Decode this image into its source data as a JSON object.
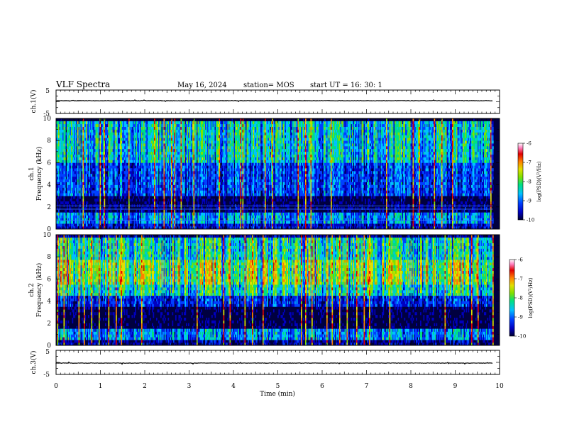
{
  "header": {
    "title": "VLF Spectra",
    "date": "May 16, 2024",
    "station": "station= MOS",
    "start": "start  UT  =   16: 30: 1"
  },
  "chart_data": {
    "type": "heatmap",
    "xlabel": "Time  (min)",
    "xlim": [
      0,
      10
    ],
    "xticks": [
      "0",
      "1",
      "2",
      "3",
      "4",
      "5",
      "6",
      "7",
      "8",
      "9",
      "10"
    ],
    "colors": {
      "background": "#000040",
      "colormap": [
        "#000030",
        "#0000c0",
        "#0040ff",
        "#00c0ff",
        "#00e080",
        "#80e000",
        "#e0e000",
        "#ff8000",
        "#e00000",
        "#ff80c0",
        "#ffffff"
      ]
    },
    "panels": [
      {
        "id": "ch1-waveform",
        "type": "line",
        "ylabel": "ch.1(V)",
        "ylim": [
          -5,
          5
        ],
        "yticks": [
          "5",
          "-5"
        ]
      },
      {
        "id": "ch1-spectrogram",
        "type": "heatmap",
        "ylabel": "ch.1\nFrequency  (kHz)",
        "ylim": [
          0,
          10
        ],
        "yticks": [
          "0",
          "2",
          "4",
          "6",
          "8",
          "10"
        ],
        "colorbar": {
          "label": "log(PSD)(V²/Hz)",
          "range": [
            -10,
            -6
          ],
          "ticks": [
            "-6",
            "-7",
            "-8",
            "-9",
            "-10"
          ]
        }
      },
      {
        "id": "ch2-spectrogram",
        "type": "heatmap",
        "ylabel": "ch.2\nFrequency  (kHz)",
        "ylim": [
          0,
          10
        ],
        "yticks": [
          "0",
          "2",
          "4",
          "6",
          "8",
          "10"
        ],
        "colorbar": {
          "label": "log(PSD)(V²/Hz)",
          "range": [
            -10,
            -6
          ],
          "ticks": [
            "-6",
            "-7",
            "-8",
            "-9",
            "-10"
          ]
        }
      },
      {
        "id": "ch3-waveform",
        "type": "line",
        "ylabel": "ch.3(V)",
        "ylim": [
          -5,
          5
        ],
        "yticks": [
          "5",
          "-5"
        ]
      }
    ]
  }
}
